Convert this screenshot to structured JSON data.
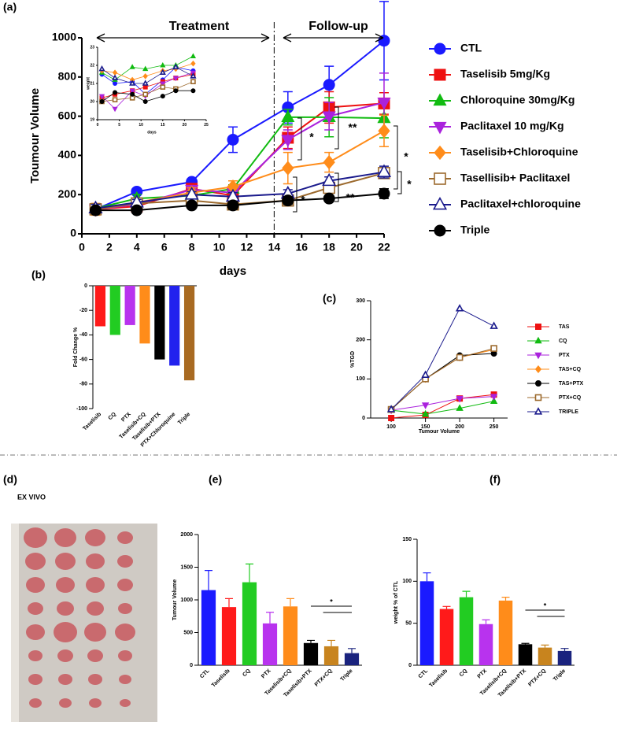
{
  "chart_data": [
    {
      "type": "line",
      "panel": "(a)",
      "xlabel": "days",
      "ylabel": "Toumour Volume",
      "x": [
        1,
        4,
        8,
        11,
        15,
        18,
        22
      ],
      "xlim": [
        0,
        22
      ],
      "xticks": [
        0,
        2,
        4,
        6,
        8,
        10,
        12,
        14,
        16,
        18,
        20,
        22
      ],
      "ylim": [
        0,
        1000
      ],
      "yticks": [
        0,
        200,
        400,
        600,
        800,
        1000
      ],
      "vline": 14,
      "legend": "right",
      "annotations": [
        "Treatment",
        "Follow-up",
        "*",
        "**",
        "*",
        "**",
        "*",
        "*"
      ],
      "series": [
        {
          "name": "CTL",
          "color": "#1a1aff",
          "marker": "circle",
          "values": [
            125,
            215,
            265,
            480,
            645,
            760,
            985
          ],
          "errors": [
            20,
            15,
            15,
            65,
            80,
            95,
            200
          ]
        },
        {
          "name": "Taselisib 5mg/Kg",
          "color": "#ee1111",
          "marker": "square",
          "values": [
            125,
            140,
            230,
            195,
            490,
            645,
            665
          ],
          "errors": [
            25,
            20,
            20,
            25,
            55,
            80,
            55
          ]
        },
        {
          "name": "Chloroquine 30mg/Kg",
          "color": "#11bb11",
          "marker": "triangle",
          "values": [
            130,
            180,
            195,
            230,
            595,
            595,
            590
          ],
          "errors": [
            20,
            20,
            20,
            20,
            40,
            100,
            100
          ]
        },
        {
          "name": "Paclitaxel  10 mg/Kg",
          "color": "#aa22dd",
          "marker": "triangle-down",
          "values": [
            125,
            150,
            225,
            210,
            480,
            600,
            670
          ],
          "errors": [
            20,
            15,
            20,
            20,
            50,
            70,
            150
          ]
        },
        {
          "name": "Taselisib+Chloroquine",
          "color": "#ff8c1a",
          "marker": "diamond",
          "values": [
            125,
            160,
            210,
            240,
            335,
            365,
            525
          ],
          "errors": [
            30,
            20,
            25,
            30,
            80,
            50,
            80
          ]
        },
        {
          "name": "Tasellisib+ Paclitaxel",
          "color": "#9c6a2e",
          "marker": "square-open",
          "values": [
            125,
            155,
            170,
            150,
            170,
            235,
            310
          ],
          "errors": [
            20,
            15,
            15,
            20,
            20,
            20,
            25
          ]
        },
        {
          "name": "Paclitaxel+chloroquine",
          "color": "#1a1a8c",
          "marker": "triangle-open",
          "values": [
            130,
            160,
            200,
            190,
            205,
            270,
            315
          ],
          "errors": [
            20,
            15,
            15,
            20,
            20,
            20,
            30
          ]
        },
        {
          "name": "Triple",
          "color": "#000000",
          "marker": "circle",
          "values": [
            120,
            120,
            145,
            145,
            170,
            180,
            205
          ],
          "errors": [
            15,
            10,
            15,
            20,
            20,
            15,
            25
          ]
        }
      ]
    },
    {
      "type": "line",
      "xlabel": "days",
      "ylabel": "weight",
      "x": [
        1,
        4,
        8,
        11,
        15,
        18,
        22
      ],
      "xlim": [
        0,
        25
      ],
      "xticks": [
        0,
        5,
        10,
        15,
        20,
        25
      ],
      "ylim": [
        19,
        23
      ],
      "yticks": [
        19,
        20,
        21,
        22,
        23
      ],
      "series": [
        {
          "color": "#1a1aff",
          "marker": "circle",
          "values": [
            21.5,
            21.0,
            21.1,
            20.4,
            21.2,
            21.9,
            21.7
          ]
        },
        {
          "color": "#ee1111",
          "marker": "square",
          "values": [
            20.2,
            20.4,
            20.6,
            20.8,
            21.1,
            21.3,
            21.5
          ]
        },
        {
          "color": "#11bb11",
          "marker": "triangle",
          "values": [
            21.6,
            21.2,
            21.9,
            21.8,
            22.0,
            22.0,
            22.5
          ]
        },
        {
          "color": "#aa22dd",
          "marker": "triangle-down",
          "values": [
            20.3,
            19.6,
            20.6,
            20.3,
            21.0,
            21.3,
            21.6
          ]
        },
        {
          "color": "#ff8c1a",
          "marker": "diamond",
          "values": [
            21.7,
            21.6,
            21.2,
            21.4,
            21.7,
            21.8,
            22.1
          ]
        },
        {
          "color": "#9c6a2e",
          "marker": "square-open",
          "values": [
            20.0,
            20.1,
            20.2,
            20.4,
            20.8,
            20.7,
            21.1
          ]
        },
        {
          "color": "#1a1a8c",
          "marker": "triangle-open",
          "values": [
            21.8,
            21.3,
            21.0,
            21.0,
            21.6,
            21.9,
            21.4
          ]
        },
        {
          "color": "#000000",
          "marker": "circle",
          "values": [
            20.0,
            20.5,
            20.4,
            20.0,
            20.3,
            20.6,
            20.6
          ]
        }
      ]
    },
    {
      "type": "bar",
      "panel": "(b)",
      "ylabel": "Fold Change %",
      "categories": [
        "Taselisib",
        "CQ",
        "PTX",
        "Taselisib+CQ",
        "Taselisib+PTX",
        "PTX+Chloroquine",
        "Triple"
      ],
      "values": [
        -33,
        -40,
        -32,
        -47,
        -60,
        -65,
        -77
      ],
      "colors": [
        "#ff1a1a",
        "#22cc22",
        "#b833ee",
        "#ff8c1a",
        "#000000",
        "#2222ee",
        "#a86a22"
      ],
      "ylim": [
        -100,
        0
      ],
      "yticks": [
        -100,
        -80,
        -60,
        -40,
        -20,
        0
      ]
    },
    {
      "type": "line",
      "panel": "(c)",
      "xlabel": "Tumour Volume",
      "ylabel": "%TGD",
      "x": [
        100,
        150,
        200,
        250
      ],
      "xlim": [
        70,
        270
      ],
      "xticks": [
        100,
        150,
        200,
        250
      ],
      "ylim": [
        0,
        300
      ],
      "yticks": [
        0,
        100,
        200,
        300
      ],
      "legend": "right",
      "series": [
        {
          "name": "TAS",
          "color": "#ee1111",
          "marker": "square",
          "values": [
            0,
            8,
            50,
            60
          ]
        },
        {
          "name": "CQ",
          "color": "#11bb11",
          "marker": "triangle",
          "values": [
            20,
            10,
            25,
            43
          ]
        },
        {
          "name": "PTX",
          "color": "#aa22dd",
          "marker": "triangle-down",
          "values": [
            20,
            33,
            50,
            55
          ]
        },
        {
          "name": "TAS+CQ",
          "color": "#ff8c1a",
          "marker": "diamond",
          "values": [
            22,
            100,
            155,
            175
          ]
        },
        {
          "name": "TAS+PTX",
          "color": "#000000",
          "marker": "circle",
          "values": [
            22,
            100,
            160,
            165
          ]
        },
        {
          "name": "PTX+CQ",
          "color": "#9c6a2e",
          "marker": "square-open",
          "values": [
            22,
            100,
            155,
            178
          ]
        },
        {
          "name": "TRIPLE",
          "color": "#1a1a8c",
          "marker": "triangle-open",
          "values": [
            22,
            110,
            280,
            235
          ]
        }
      ]
    },
    {
      "type": "bar",
      "panel": "(e)",
      "ylabel": "Tumour Volume",
      "annotations": [
        "*"
      ],
      "categories": [
        "CTL",
        "Taselisib",
        "CQ",
        "PTX",
        "Taselisib+CQ",
        "Taselisib+PTX",
        "PTX+CQ",
        "Triple"
      ],
      "values": [
        1150,
        890,
        1270,
        640,
        900,
        340,
        290,
        185
      ],
      "errors": [
        300,
        130,
        280,
        170,
        120,
        40,
        90,
        70
      ],
      "colors": [
        "#1a1aff",
        "#ff1a1a",
        "#22cc22",
        "#b833ee",
        "#ff8c1a",
        "#000000",
        "#c8841e",
        "#1a237e"
      ],
      "ylim": [
        0,
        2000
      ],
      "yticks": [
        0,
        500,
        1000,
        1500,
        2000
      ]
    },
    {
      "type": "bar",
      "panel": "(f)",
      "ylabel": "weight % of CTL",
      "annotations": [
        "*"
      ],
      "categories": [
        "CTL",
        "Taselisib",
        "CQ",
        "PTX",
        "Taselisib+CQ",
        "Taselisib+PTX",
        "PTX+CQ",
        "Triple"
      ],
      "values": [
        100,
        67,
        81,
        49,
        77,
        25,
        21,
        17
      ],
      "errors": [
        10,
        3,
        7,
        5,
        4,
        1,
        3,
        3
      ],
      "colors": [
        "#1a1aff",
        "#ff1a1a",
        "#22cc22",
        "#b833ee",
        "#ff8c1a",
        "#000000",
        "#c8841e",
        "#1a237e"
      ],
      "ylim": [
        0,
        150
      ],
      "yticks": [
        0,
        50,
        100,
        150
      ]
    }
  ],
  "photo": {
    "panel": "(d)",
    "caption": "EX VIVO"
  }
}
